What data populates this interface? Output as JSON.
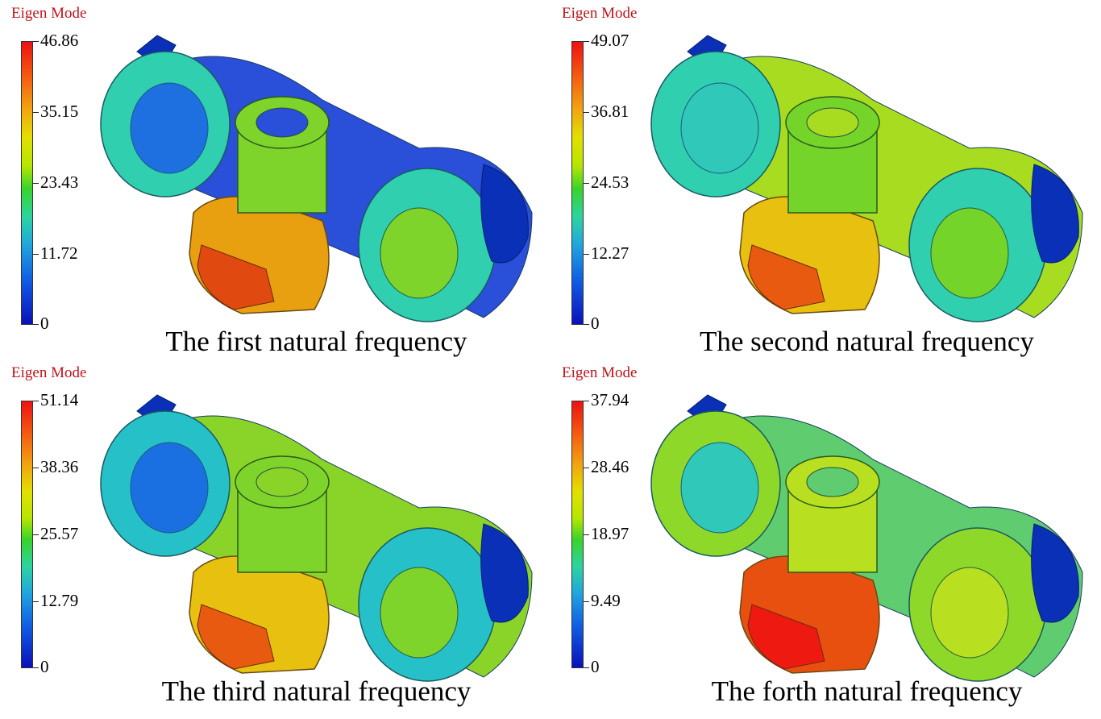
{
  "panels": [
    {
      "legend_title": "Eigen Mode",
      "scale_ticks": [
        "46.86",
        "35.15",
        "23.43",
        "11.72",
        "0"
      ],
      "caption": "The first natural frequency",
      "colors": {
        "c1": "#2a4fd8",
        "c2": "#2fcfb0",
        "c3": "#1e6fe0",
        "c4": "#e8a010",
        "c5": "#e04a10",
        "c6": "#7ed42a",
        "c7": "#0a30b8"
      }
    },
    {
      "legend_title": "Eigen Mode",
      "scale_ticks": [
        "49.07",
        "36.81",
        "24.53",
        "12.27",
        "0"
      ],
      "caption": "The second natural frequency",
      "colors": {
        "c1": "#a8dc20",
        "c2": "#2fcfb0",
        "c3": "#30c8b8",
        "c4": "#e8c010",
        "c5": "#e85a10",
        "c6": "#74d42a",
        "c7": "#0a30b8"
      }
    },
    {
      "legend_title": "Eigen Mode",
      "scale_ticks": [
        "51.14",
        "38.36",
        "25.57",
        "12.79",
        "0"
      ],
      "caption": "The third natural frequency",
      "colors": {
        "c1": "#8ad42a",
        "c2": "#26c0c8",
        "c3": "#1a70e0",
        "c4": "#e8c010",
        "c5": "#e85a10",
        "c6": "#7ed42a",
        "c7": "#0a30b8"
      }
    },
    {
      "legend_title": "Eigen Mode",
      "scale_ticks": [
        "37.94",
        "28.46",
        "18.97",
        "9.49",
        "0"
      ],
      "caption": "The forth natural frequency",
      "colors": {
        "c1": "#60cc70",
        "c2": "#8ed82a",
        "c3": "#30c8b8",
        "c4": "#e85010",
        "c5": "#ee1a12",
        "c6": "#b8e020",
        "c7": "#0a30b8"
      }
    }
  ]
}
